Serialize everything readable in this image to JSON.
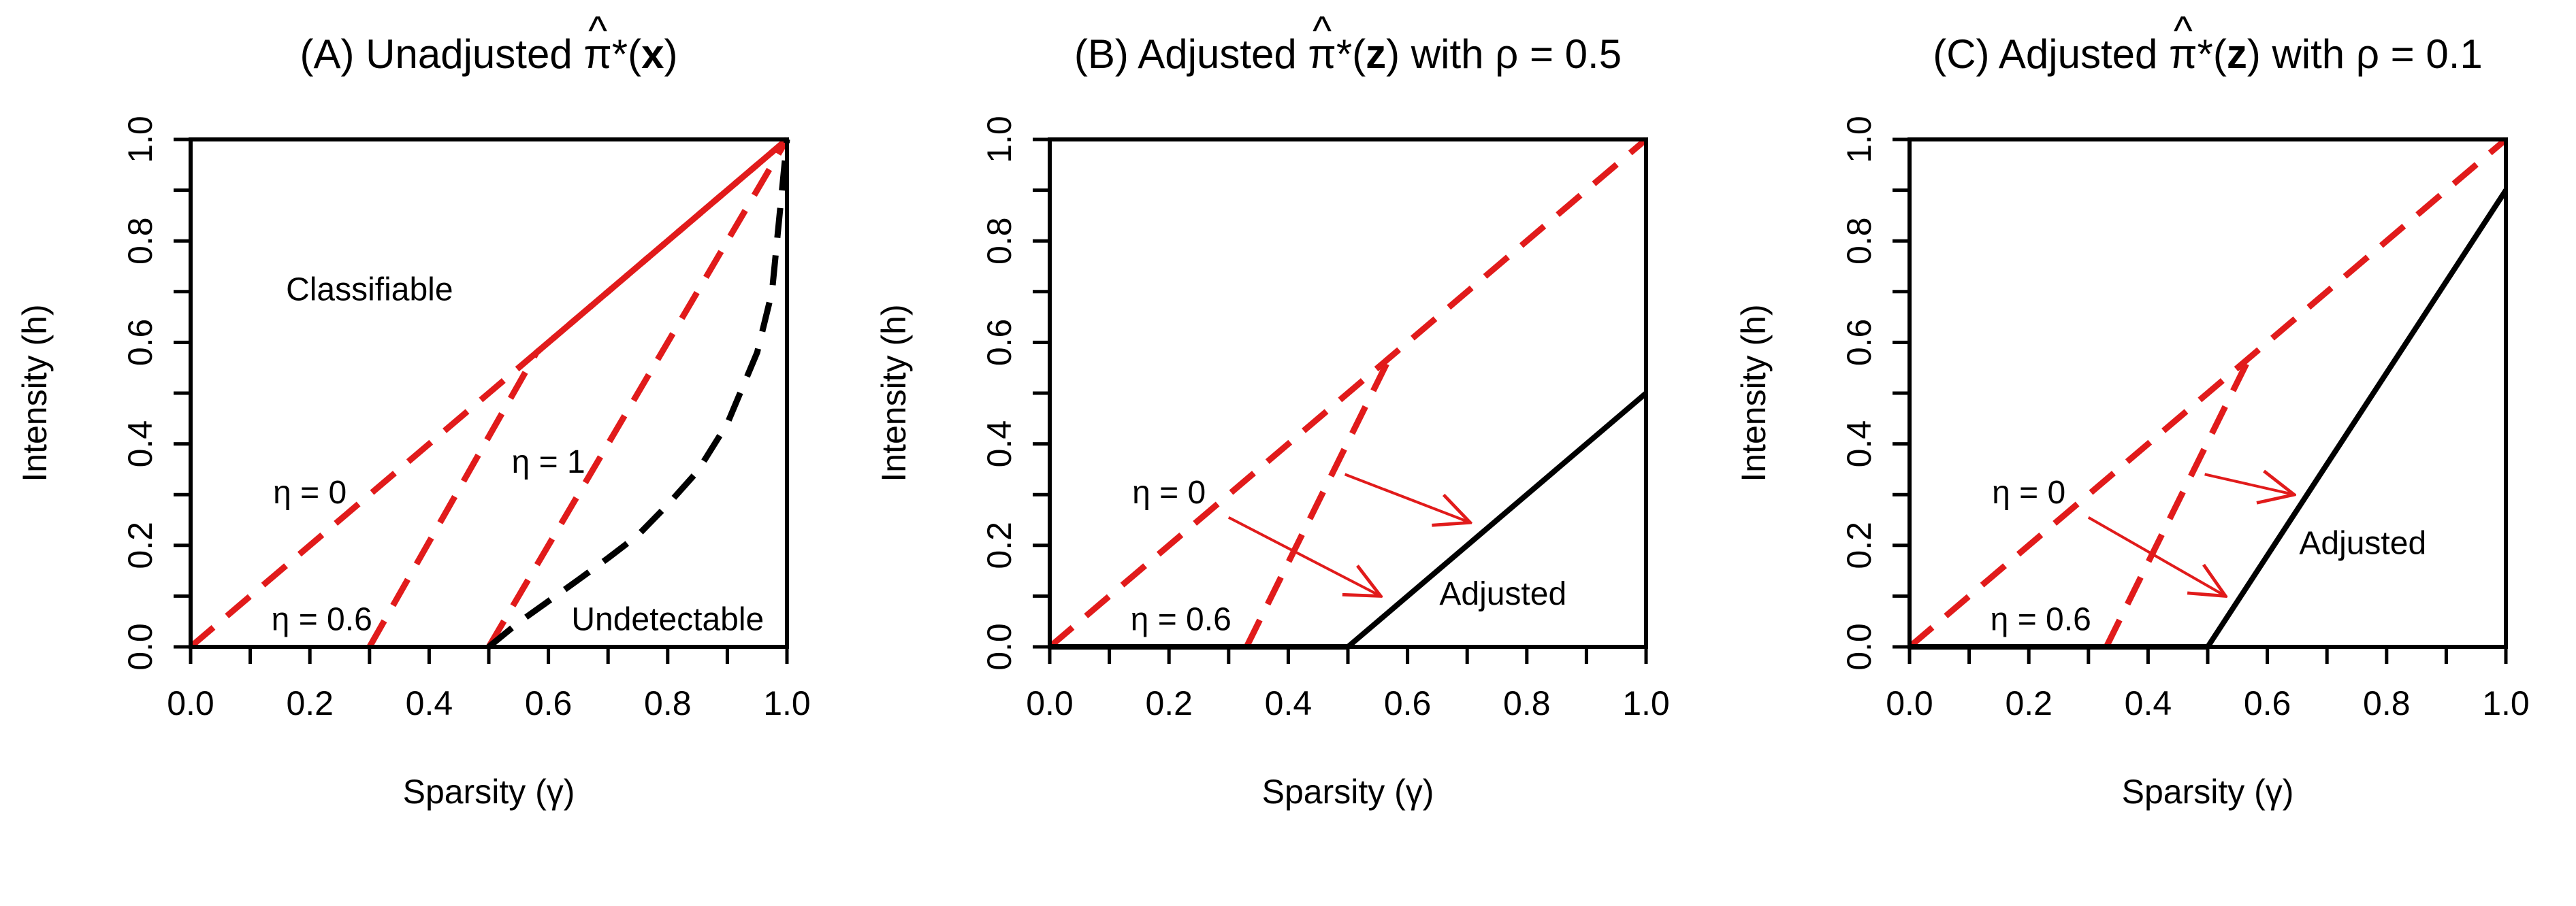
{
  "colors": {
    "red": "#e11b1b",
    "black": "#000000",
    "background": "#ffffff"
  },
  "chart_data": [
    {
      "type": "line",
      "panel": "A",
      "title_prefix": "(A)  Unadjusted ",
      "title_pi": "π",
      "title_hat": "^",
      "title_suffix": "*(",
      "title_var": "x",
      "title_end": ")",
      "xlabel": "Sparsity (γ)",
      "ylabel": "Intensity (h)",
      "xlim": [
        0,
        1
      ],
      "ylim": [
        0,
        1
      ],
      "xticks": [
        "0.0",
        "0.2",
        "0.4",
        "0.6",
        "0.8",
        "1.0"
      ],
      "yticks": [
        "0.0",
        "0.2",
        "0.4",
        "0.6",
        "0.8",
        "1.0"
      ],
      "series": [
        {
          "name": "eta-0",
          "color": "red",
          "style": "dashed",
          "x": [
            0.0,
            0.5,
            1.0
          ],
          "y": [
            0.0,
            0.5,
            1.0
          ]
        },
        {
          "name": "eta-0.6",
          "color": "red",
          "style": "dashed",
          "x": [
            0.3,
            0.58,
            1.0
          ],
          "y": [
            0.0,
            0.58,
            1.0
          ]
        },
        {
          "name": "eta-1",
          "color": "red",
          "style": "dashed",
          "x": [
            0.5,
            0.75,
            1.0
          ],
          "y": [
            0.0,
            0.5,
            1.0
          ]
        },
        {
          "name": "detection-boundary",
          "color": "black",
          "style": "dashed",
          "x": [
            0.5,
            0.55,
            0.6,
            0.65,
            0.7,
            0.75,
            0.8,
            0.85,
            0.9,
            0.95,
            0.975,
            1.0
          ],
          "y": [
            0.0,
            0.048,
            0.09,
            0.132,
            0.175,
            0.22,
            0.28,
            0.346,
            0.44,
            0.58,
            0.7,
            1.0
          ]
        }
      ],
      "annotations": [
        {
          "text": "Classifiable",
          "x": 0.3,
          "y": 0.7
        },
        {
          "text": "η = 0",
          "x": 0.2,
          "y": 0.3
        },
        {
          "text": "η = 1",
          "x": 0.6,
          "y": 0.36
        },
        {
          "text": "η = 0.6",
          "x": 0.22,
          "y": 0.05
        },
        {
          "text": "Undetectable",
          "x": 0.8,
          "y": 0.05
        }
      ],
      "arrows": []
    },
    {
      "type": "line",
      "panel": "B",
      "title_prefix": "(B)  Adjusted ",
      "title_pi": "π",
      "title_hat": "^",
      "title_suffix": "*(",
      "title_var": "z",
      "title_end": ") with ρ = 0.5",
      "xlabel": "Sparsity (γ)",
      "ylabel": "Intensity (h)",
      "xlim": [
        0,
        1
      ],
      "ylim": [
        0,
        1
      ],
      "xticks": [
        "0.0",
        "0.2",
        "0.4",
        "0.6",
        "0.8",
        "1.0"
      ],
      "yticks": [
        "0.0",
        "0.2",
        "0.4",
        "0.6",
        "0.8",
        "1.0"
      ],
      "series": [
        {
          "name": "eta-0",
          "color": "red",
          "style": "dashed",
          "x": [
            0.0,
            1.0
          ],
          "y": [
            0.0,
            1.0
          ]
        },
        {
          "name": "eta-0.6",
          "color": "red",
          "style": "dashed",
          "x": [
            0.33,
            0.57
          ],
          "y": [
            0.0,
            0.57
          ]
        },
        {
          "name": "adjusted-boundary",
          "color": "black",
          "style": "solid",
          "x": [
            0.0,
            0.5,
            1.0
          ],
          "y": [
            0.0,
            0.0,
            0.5
          ]
        }
      ],
      "annotations": [
        {
          "text": "η = 0",
          "x": 0.2,
          "y": 0.3
        },
        {
          "text": "η = 0.6",
          "x": 0.22,
          "y": 0.05
        },
        {
          "text": "Adjusted",
          "x": 0.76,
          "y": 0.1
        }
      ],
      "arrows": [
        {
          "from": [
            0.495,
            0.34
          ],
          "to": [
            0.705,
            0.245
          ]
        },
        {
          "from": [
            0.3,
            0.255
          ],
          "to": [
            0.555,
            0.1
          ]
        }
      ]
    },
    {
      "type": "line",
      "panel": "C",
      "title_prefix": "(C)  Adjusted ",
      "title_pi": "π",
      "title_hat": "^",
      "title_suffix": "*(",
      "title_var": "z",
      "title_end": ") with ρ = 0.1",
      "xlabel": "Sparsity (γ)",
      "ylabel": "Intensity (h)",
      "xlim": [
        0,
        1
      ],
      "ylim": [
        0,
        1
      ],
      "xticks": [
        "0.0",
        "0.2",
        "0.4",
        "0.6",
        "0.8",
        "1.0"
      ],
      "yticks": [
        "0.0",
        "0.2",
        "0.4",
        "0.6",
        "0.8",
        "1.0"
      ],
      "series": [
        {
          "name": "eta-0",
          "color": "red",
          "style": "dashed",
          "x": [
            0.0,
            1.0
          ],
          "y": [
            0.0,
            1.0
          ]
        },
        {
          "name": "eta-0.6",
          "color": "red",
          "style": "dashed",
          "x": [
            0.33,
            0.57
          ],
          "y": [
            0.0,
            0.57
          ]
        },
        {
          "name": "adjusted-boundary",
          "color": "black",
          "style": "solid",
          "x": [
            0.0,
            0.5,
            1.0
          ],
          "y": [
            0.0,
            0.0,
            0.9
          ]
        }
      ],
      "annotations": [
        {
          "text": "η = 0",
          "x": 0.2,
          "y": 0.3
        },
        {
          "text": "η = 0.6",
          "x": 0.22,
          "y": 0.05
        },
        {
          "text": "Adjusted",
          "x": 0.76,
          "y": 0.2
        }
      ],
      "arrows": [
        {
          "from": [
            0.495,
            0.34
          ],
          "to": [
            0.645,
            0.3
          ]
        },
        {
          "from": [
            0.3,
            0.255
          ],
          "to": [
            0.53,
            0.1
          ]
        }
      ]
    }
  ]
}
